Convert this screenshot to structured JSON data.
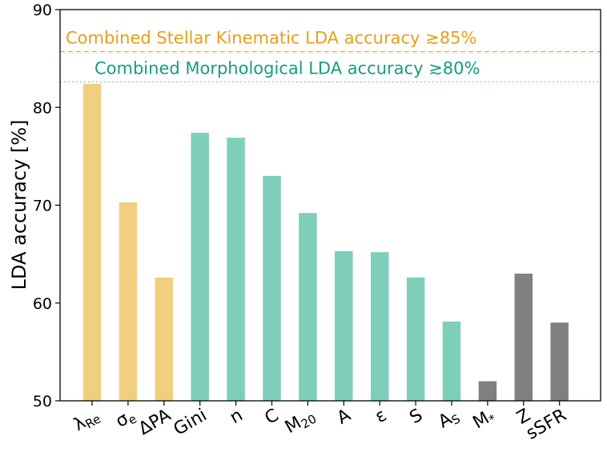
{
  "chart_data": {
    "type": "bar",
    "ylabel": "LDA accuracy [%]",
    "xlabel": "",
    "ylim": [
      50,
      90
    ],
    "yticks": [
      50,
      60,
      70,
      80,
      90
    ],
    "grid": false,
    "categories": [
      "λRe",
      "σe",
      "ΔPA",
      "Gini",
      "n",
      "C",
      "M20",
      "A",
      "ε",
      "S",
      "AS",
      "M*",
      "Z",
      "sSFR"
    ],
    "tick_text": [
      {
        "main": "λ",
        "sub": "Re"
      },
      {
        "main": "σ",
        "sub": "e"
      },
      {
        "main": "ΔPA",
        "sub": ""
      },
      {
        "main": "Gini",
        "sub": ""
      },
      {
        "main": "n",
        "sub": ""
      },
      {
        "main": "C",
        "sub": ""
      },
      {
        "main": "M",
        "sub": "20"
      },
      {
        "main": "A",
        "sub": ""
      },
      {
        "main": "ε",
        "sub": ""
      },
      {
        "main": "S",
        "sub": ""
      },
      {
        "main": "A",
        "sub": "S"
      },
      {
        "main": "M",
        "sub": "*"
      },
      {
        "main": "Z",
        "sub": ""
      },
      {
        "main": "sSFR",
        "sub": ""
      }
    ],
    "values": [
      82.4,
      70.3,
      62.6,
      77.4,
      76.9,
      73.0,
      69.2,
      65.3,
      65.2,
      62.6,
      58.1,
      52.0,
      63.0,
      58.0
    ],
    "groups": [
      "kinematic",
      "kinematic",
      "kinematic",
      "morphological",
      "morphological",
      "morphological",
      "morphological",
      "morphological",
      "morphological",
      "morphological",
      "morphological",
      "other",
      "other",
      "other"
    ],
    "group_colors": {
      "kinematic": "#f0d07f",
      "morphological": "#7ecfb9",
      "other": "#808080"
    },
    "reference_lines": [
      {
        "value": 85.7,
        "label": "Combined Stellar Kinematic LDA accuracy  ≳85%",
        "color": "#f0a830",
        "text_color": "#e6a01b",
        "style": "dashed"
      },
      {
        "value": 82.6,
        "label": "Combined Morphological LDA accuracy  ≳80%",
        "color": "#7ecfb9",
        "text_color": "#159e7c",
        "style": "dotted"
      }
    ]
  }
}
